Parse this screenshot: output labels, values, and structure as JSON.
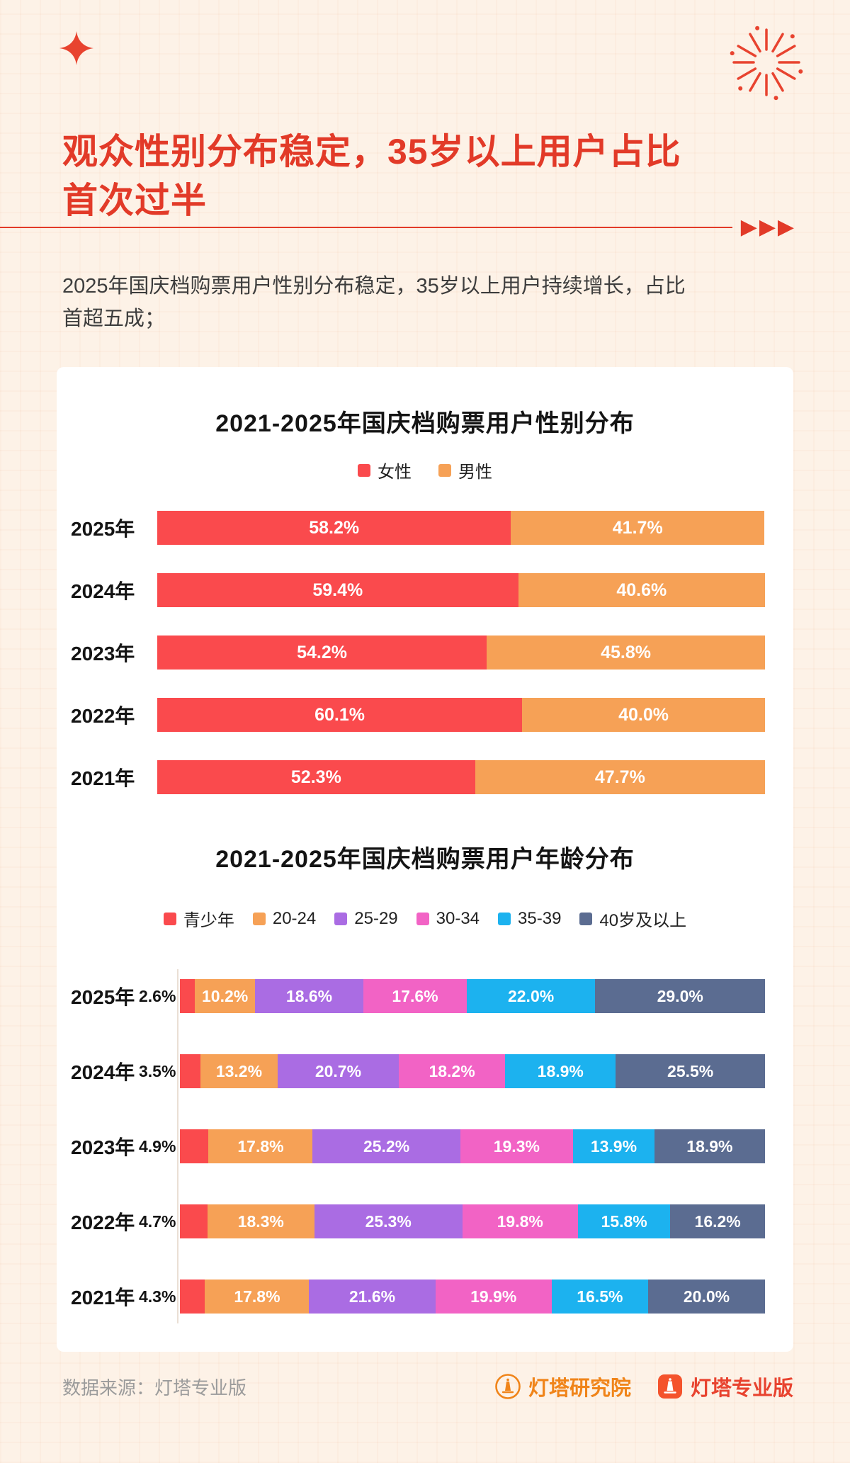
{
  "page": {
    "title": "观众性别分布稳定，35岁以上用户占比\n首次过半",
    "subtitle": "2025年国庆档购票用户性别分布稳定，35岁以上用户持续增长，占比\n首超五成；",
    "decor": {
      "arrows": "▶▶▶"
    },
    "footer": {
      "source": "数据来源：灯塔专业版",
      "brand1": "灯塔研究院",
      "brand2": "灯塔专业版"
    }
  },
  "colors": {
    "background": "#fdf2e7",
    "accent_red": "#e23a28",
    "card": "#ffffff",
    "brand1_orange": "#f08419",
    "brand2_red": "#e8432f"
  },
  "chart_data": [
    {
      "type": "bar",
      "stacked": true,
      "orientation": "horizontal",
      "title": "2021-2025年国庆档购票用户性别分布",
      "categories": [
        "2025年",
        "2024年",
        "2023年",
        "2022年",
        "2021年"
      ],
      "series": [
        {
          "name": "女性",
          "color": "#fa4a4d",
          "values": [
            58.2,
            59.4,
            54.2,
            60.1,
            52.3
          ]
        },
        {
          "name": "男性",
          "color": "#f6a156",
          "values": [
            41.7,
            40.6,
            45.8,
            40.0,
            47.7
          ]
        }
      ],
      "value_suffix": "%",
      "xlim": [
        0,
        100
      ],
      "legend_position": "top",
      "grid": false
    },
    {
      "type": "bar",
      "stacked": true,
      "orientation": "horizontal",
      "title": "2021-2025年国庆档购票用户年龄分布",
      "categories": [
        "2025年",
        "2024年",
        "2023年",
        "2022年",
        "2021年"
      ],
      "series": [
        {
          "name": "青少年",
          "color": "#fa4a4d",
          "label_outside": true,
          "values": [
            2.6,
            3.5,
            4.9,
            4.7,
            4.3
          ]
        },
        {
          "name": "20-24",
          "color": "#f6a156",
          "values": [
            10.2,
            13.2,
            17.8,
            18.3,
            17.8
          ]
        },
        {
          "name": "25-29",
          "color": "#aa6ce3",
          "values": [
            18.6,
            20.7,
            25.2,
            25.3,
            21.6
          ]
        },
        {
          "name": "30-34",
          "color": "#f263c5",
          "values": [
            17.6,
            18.2,
            19.3,
            19.8,
            19.9
          ]
        },
        {
          "name": "35-39",
          "color": "#1cb2ef",
          "values": [
            22.0,
            18.9,
            13.9,
            15.8,
            16.5
          ]
        },
        {
          "name": "40岁及以上",
          "color": "#5b6c91",
          "values": [
            29.0,
            25.5,
            18.9,
            16.2,
            20.0
          ]
        }
      ],
      "value_suffix": "%",
      "xlim": [
        0,
        100
      ],
      "legend_position": "top",
      "grid": false
    }
  ]
}
